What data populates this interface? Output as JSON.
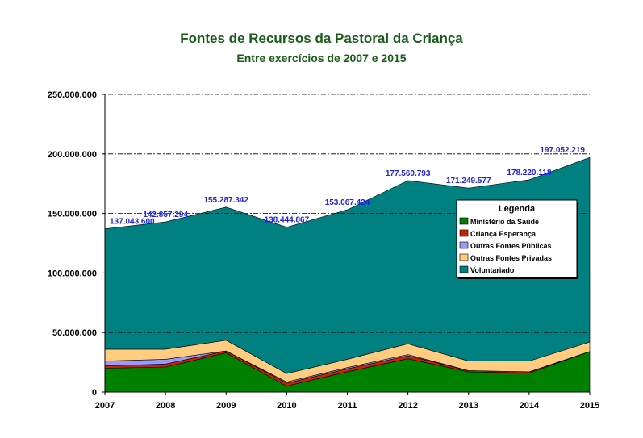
{
  "chart_data": {
    "type": "area",
    "stacked": true,
    "title": "Fontes de Recursos da Pastoral da Criança",
    "subtitle": "Entre exercícios de 2007 e 2015",
    "xlabel": "",
    "ylabel": "",
    "categories": [
      "2007",
      "2008",
      "2009",
      "2010",
      "2011",
      "2012",
      "2013",
      "2014",
      "2015"
    ],
    "ylim": [
      0,
      250000000
    ],
    "yticks": [
      0,
      50000000,
      100000000,
      150000000,
      200000000,
      250000000
    ],
    "ytick_labels": [
      "0",
      "50.000.000",
      "100.000.000",
      "150.000.000",
      "200.000.000",
      "250.000.000"
    ],
    "grid": "horizontal dashed",
    "legend": {
      "title": "Legenda",
      "placement": "right",
      "entries": [
        "Ministério da Saúde",
        "Criança Esperança",
        "Outras Fontes Públicas",
        "Outras Fontes Privadas",
        "Voluntariado"
      ]
    },
    "series": [
      {
        "name": "Ministério da Saúde",
        "color": "#008000",
        "values": [
          20000000,
          21000000,
          33000000,
          5000000,
          17000000,
          28000000,
          17000000,
          16000000,
          34000000
        ]
      },
      {
        "name": "Criança Esperança",
        "color": "#cc2200",
        "values": [
          2000000,
          2500000,
          1500000,
          2500000,
          2500000,
          2500000,
          1000000,
          1000000,
          0
        ]
      },
      {
        "name": "Outras Fontes Públicas",
        "color": "#9999ff",
        "values": [
          4000000,
          4000000,
          0,
          1000000,
          1000000,
          1000000,
          0,
          0,
          0
        ]
      },
      {
        "name": "Outras Fontes Privadas",
        "color": "#ffcc80",
        "values": [
          10000000,
          8500000,
          9000000,
          7000000,
          7000000,
          9000000,
          8000000,
          9000000,
          8000000
        ]
      },
      {
        "name": "Voluntariado",
        "color": "#008080",
        "values": [
          101043600,
          106857294,
          111787342,
          122944867,
          125567424,
          137060793,
          145249577,
          152220118,
          155052219
        ]
      }
    ],
    "totals": [
      137043600,
      142857294,
      155287342,
      138444867,
      153067424,
      177560793,
      171249577,
      178220118,
      197052219
    ],
    "total_labels": [
      "137.043.600",
      "142.857.294",
      "155.287.342",
      "138.444.867",
      "153.067.424",
      "177.560.793",
      "171.249.577",
      "178.220.118",
      "197.052.219"
    ]
  }
}
